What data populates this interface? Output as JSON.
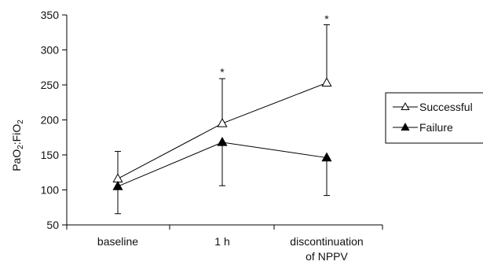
{
  "chart_data": {
    "type": "line",
    "categories": [
      "baseline",
      "1 h",
      "discontinuation of NPPV"
    ],
    "category_lines": [
      [
        "baseline"
      ],
      [
        "1 h"
      ],
      [
        "discontinuation",
        "of NPPV"
      ]
    ],
    "ylabel": "PaO",
    "ylabel_sub1": "2",
    "ylabel_mid": ":FiO",
    "ylabel_sub2": "2",
    "ylim": [
      50,
      350
    ],
    "yticks": [
      "50",
      "100",
      "150",
      "200",
      "250",
      "300",
      "350"
    ],
    "legend_position": "right",
    "series": [
      {
        "name": "Successful",
        "marker": "open-triangle",
        "values": [
          116,
          195,
          253
        ],
        "error_upper": [
          155,
          259,
          336
        ],
        "error_lower": null
      },
      {
        "name": "Failure",
        "marker": "filled-triangle",
        "values": [
          105,
          168,
          146
        ],
        "error_upper": null,
        "error_lower": [
          66,
          106,
          92
        ]
      }
    ],
    "annotations": [
      {
        "text": "*",
        "category_index": 1,
        "y": 272
      },
      {
        "text": "*",
        "category_index": 2,
        "y": 348
      }
    ]
  }
}
